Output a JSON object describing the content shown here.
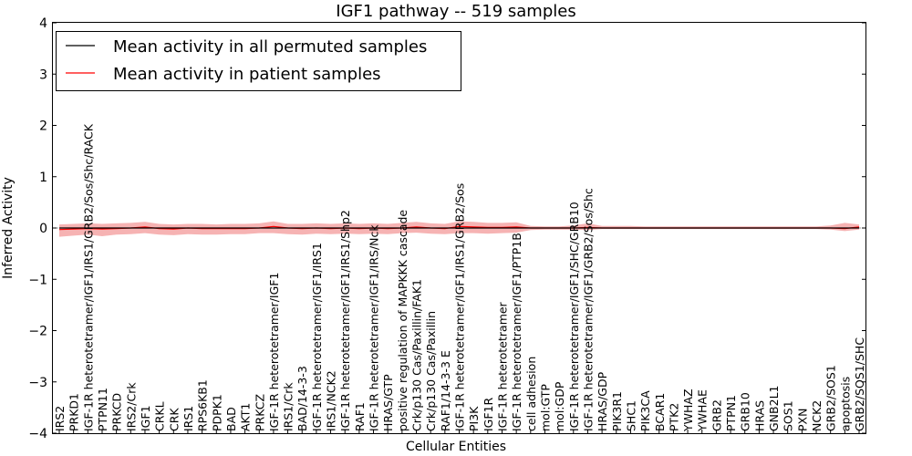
{
  "chart_data": {
    "type": "line",
    "title": "IGF1 pathway -- 519 samples",
    "xlabel": "Cellular Entities",
    "ylabel": "Inferred Activity",
    "ylim": [
      -4,
      4
    ],
    "yticks": [
      "−4",
      "−3",
      "−2",
      "−1",
      "0",
      "1",
      "2",
      "3",
      "4"
    ],
    "legend_position": "top-left",
    "colors": {
      "permuted": "#000000",
      "patient": "#ff0000",
      "band": "#f08080"
    },
    "categories": [
      "IRS2",
      "PRKD1",
      "IGF-1R heterotetramer/IGF1/IRS1/GRB2/Sos/Shc/RACK",
      "PTPN11",
      "PRKCD",
      "IRS2/Crk",
      "IGF1",
      "CRKL",
      "CRK",
      "IRS1",
      "RPS6KB1",
      "PDPK1",
      "BAD",
      "AKT1",
      "PRKCZ",
      "IGF-1R heterotetramer/IGF1",
      "IRS1/Crk",
      "BAD/14-3-3",
      "IGF-1R heterotetramer/IGF1/IRS1",
      "IRS1/NCK2",
      "IGF-1R heterotetramer/IGF1/IRS1/Shp2",
      "RAF1",
      "IGF-1R heterotetramer/IGF1/IRS/Nck",
      "HRAS/GTP",
      "positive regulation of MAPKKK cascade",
      "Crk/p130 Cas/Paxillin/FAK1",
      "Crk/p130 Cas/Paxillin",
      "RAF1/14-3-3 E",
      "IGF-1R heterotetramer/IGF1/IRS1/GRB2/Sos",
      "PI3K",
      "IGF1R",
      "IGF-1R heterotetramer",
      "IGF-1R heterotetramer/IGF1/PTP1B",
      "cell adhesion",
      "mol:GTP",
      "mol:GDP",
      "IGF-1R heterotetramer/IGF1/SHC/GRB10",
      "IGF-1R heterotetramer/IGF1/GRB2/Sos/Shc",
      "HRAS/GDP",
      "PIK3R1",
      "SHC1",
      "PIK3CA",
      "BCAR1",
      "PTK2",
      "YWHAZ",
      "YWHAE",
      "GRB2",
      "PTPN1",
      "GRB10",
      "HRAS",
      "GNB2L1",
      "SOS1",
      "PXN",
      "NCK2",
      "GRB2/SOS1",
      "apoptosis",
      "GRB2/SOS1/SHC"
    ],
    "series": [
      {
        "name": "Mean activity in all permuted samples",
        "values": [
          0,
          0,
          0,
          0,
          0,
          0,
          0,
          0,
          0,
          0,
          0,
          0,
          0,
          0,
          0,
          0,
          0,
          0,
          0,
          0,
          0,
          0,
          0,
          0,
          0,
          0,
          0,
          0,
          0,
          0,
          0,
          0,
          0,
          0,
          0,
          0,
          0,
          0,
          0,
          0,
          0,
          0,
          0,
          0,
          0,
          0,
          0,
          0,
          0,
          0,
          0,
          0,
          0,
          0,
          0,
          0,
          0
        ]
      },
      {
        "name": "Mean activity in patient samples",
        "values": [
          -0.03,
          -0.02,
          -0.01,
          -0.02,
          -0.01,
          0,
          0.02,
          -0.01,
          -0.02,
          0,
          -0.01,
          -0.01,
          -0.01,
          -0.01,
          0,
          0.03,
          0,
          -0.01,
          0,
          -0.01,
          0,
          -0.01,
          0,
          -0.01,
          0,
          0.02,
          0,
          -0.01,
          0.03,
          0.02,
          0.01,
          0.01,
          0.02,
          0,
          0,
          0,
          0,
          0.01,
          0,
          0,
          0,
          0,
          0,
          0,
          0,
          0,
          0,
          0,
          0,
          0,
          0,
          0,
          0,
          0,
          0,
          -0.01,
          0.02
        ],
        "lower": [
          -0.17,
          -0.15,
          -0.13,
          -0.16,
          -0.13,
          -0.12,
          -0.1,
          -0.13,
          -0.14,
          -0.12,
          -0.13,
          -0.13,
          -0.12,
          -0.12,
          -0.1,
          -0.1,
          -0.12,
          -0.13,
          -0.11,
          -0.12,
          -0.11,
          -0.12,
          -0.11,
          -0.12,
          -0.1,
          -0.09,
          -0.11,
          -0.12,
          -0.1,
          -0.1,
          -0.11,
          -0.1,
          -0.09,
          -0.04,
          -0.03,
          -0.03,
          -0.03,
          -0.04,
          -0.02,
          -0.02,
          -0.02,
          -0.02,
          -0.02,
          -0.02,
          -0.02,
          -0.02,
          -0.02,
          -0.02,
          -0.02,
          -0.02,
          -0.02,
          -0.02,
          -0.02,
          -0.02,
          -0.03,
          -0.06,
          -0.03
        ],
        "upper": [
          0.07,
          0.08,
          0.09,
          0.08,
          0.09,
          0.1,
          0.12,
          0.08,
          0.07,
          0.08,
          0.08,
          0.07,
          0.08,
          0.08,
          0.09,
          0.13,
          0.08,
          0.08,
          0.09,
          0.08,
          0.09,
          0.08,
          0.09,
          0.08,
          0.1,
          0.12,
          0.09,
          0.08,
          0.13,
          0.12,
          0.1,
          0.1,
          0.11,
          0.04,
          0.03,
          0.03,
          0.05,
          0.09,
          0.04,
          0.04,
          0.04,
          0.03,
          0.03,
          0.03,
          0.03,
          0.03,
          0.03,
          0.03,
          0.03,
          0.03,
          0.03,
          0.03,
          0.03,
          0.03,
          0.05,
          0.1,
          0.07
        ]
      }
    ]
  }
}
